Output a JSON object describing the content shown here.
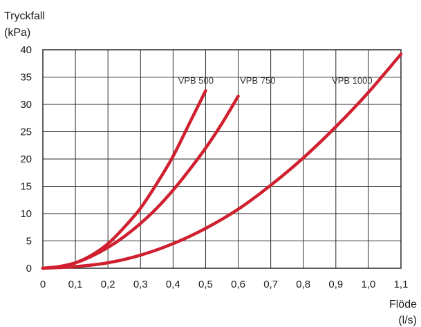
{
  "chart_data": {
    "type": "line",
    "title": "",
    "ylabel": [
      "Tryckfall",
      "(kPa)"
    ],
    "xlabel": [
      "Flöde",
      "(l/s)"
    ],
    "xlim": [
      0,
      1.1
    ],
    "ylim": [
      0,
      40
    ],
    "x_ticks": [
      "0",
      "0,1",
      "0,2",
      "0,3",
      "0,4",
      "0,5",
      "0,6",
      "0,7",
      "0,8",
      "0,9",
      "1,0",
      "1,1"
    ],
    "y_ticks": [
      "0",
      "5",
      "10",
      "15",
      "20",
      "25",
      "30",
      "35",
      "40"
    ],
    "grid": true,
    "line_color": "#d0202f",
    "series": [
      {
        "name": "VPB 500",
        "x": [
          0,
          0.05,
          0.1,
          0.15,
          0.2,
          0.25,
          0.3,
          0.35,
          0.4,
          0.45,
          0.5
        ],
        "y": [
          0,
          0.3,
          1.0,
          2.4,
          4.5,
          7.5,
          11.0,
          15.5,
          20.5,
          26.5,
          32.5
        ]
      },
      {
        "name": "VPB 750",
        "x": [
          0,
          0.05,
          0.1,
          0.15,
          0.2,
          0.25,
          0.3,
          0.35,
          0.4,
          0.45,
          0.5,
          0.55,
          0.6
        ],
        "y": [
          0,
          0.3,
          1.0,
          2.2,
          3.8,
          5.8,
          8.2,
          11.0,
          14.3,
          18.0,
          22.0,
          26.5,
          31.5
        ]
      },
      {
        "name": "VPB 1000",
        "x": [
          0,
          0.1,
          0.2,
          0.3,
          0.4,
          0.5,
          0.6,
          0.7,
          0.8,
          0.9,
          1.0,
          1.1
        ],
        "y": [
          0,
          0.3,
          1.0,
          2.4,
          4.5,
          7.3,
          10.8,
          15.2,
          20.2,
          25.9,
          32.2,
          39.2
        ]
      }
    ],
    "series_labels": [
      {
        "text": "VPB 500",
        "at_x": 0.47,
        "at_y": 33.3
      },
      {
        "text": "VPB 750",
        "at_x": 0.66,
        "at_y": 33.3
      },
      {
        "text": "VPB 1000",
        "at_x": 0.95,
        "at_y": 33.3
      }
    ]
  }
}
